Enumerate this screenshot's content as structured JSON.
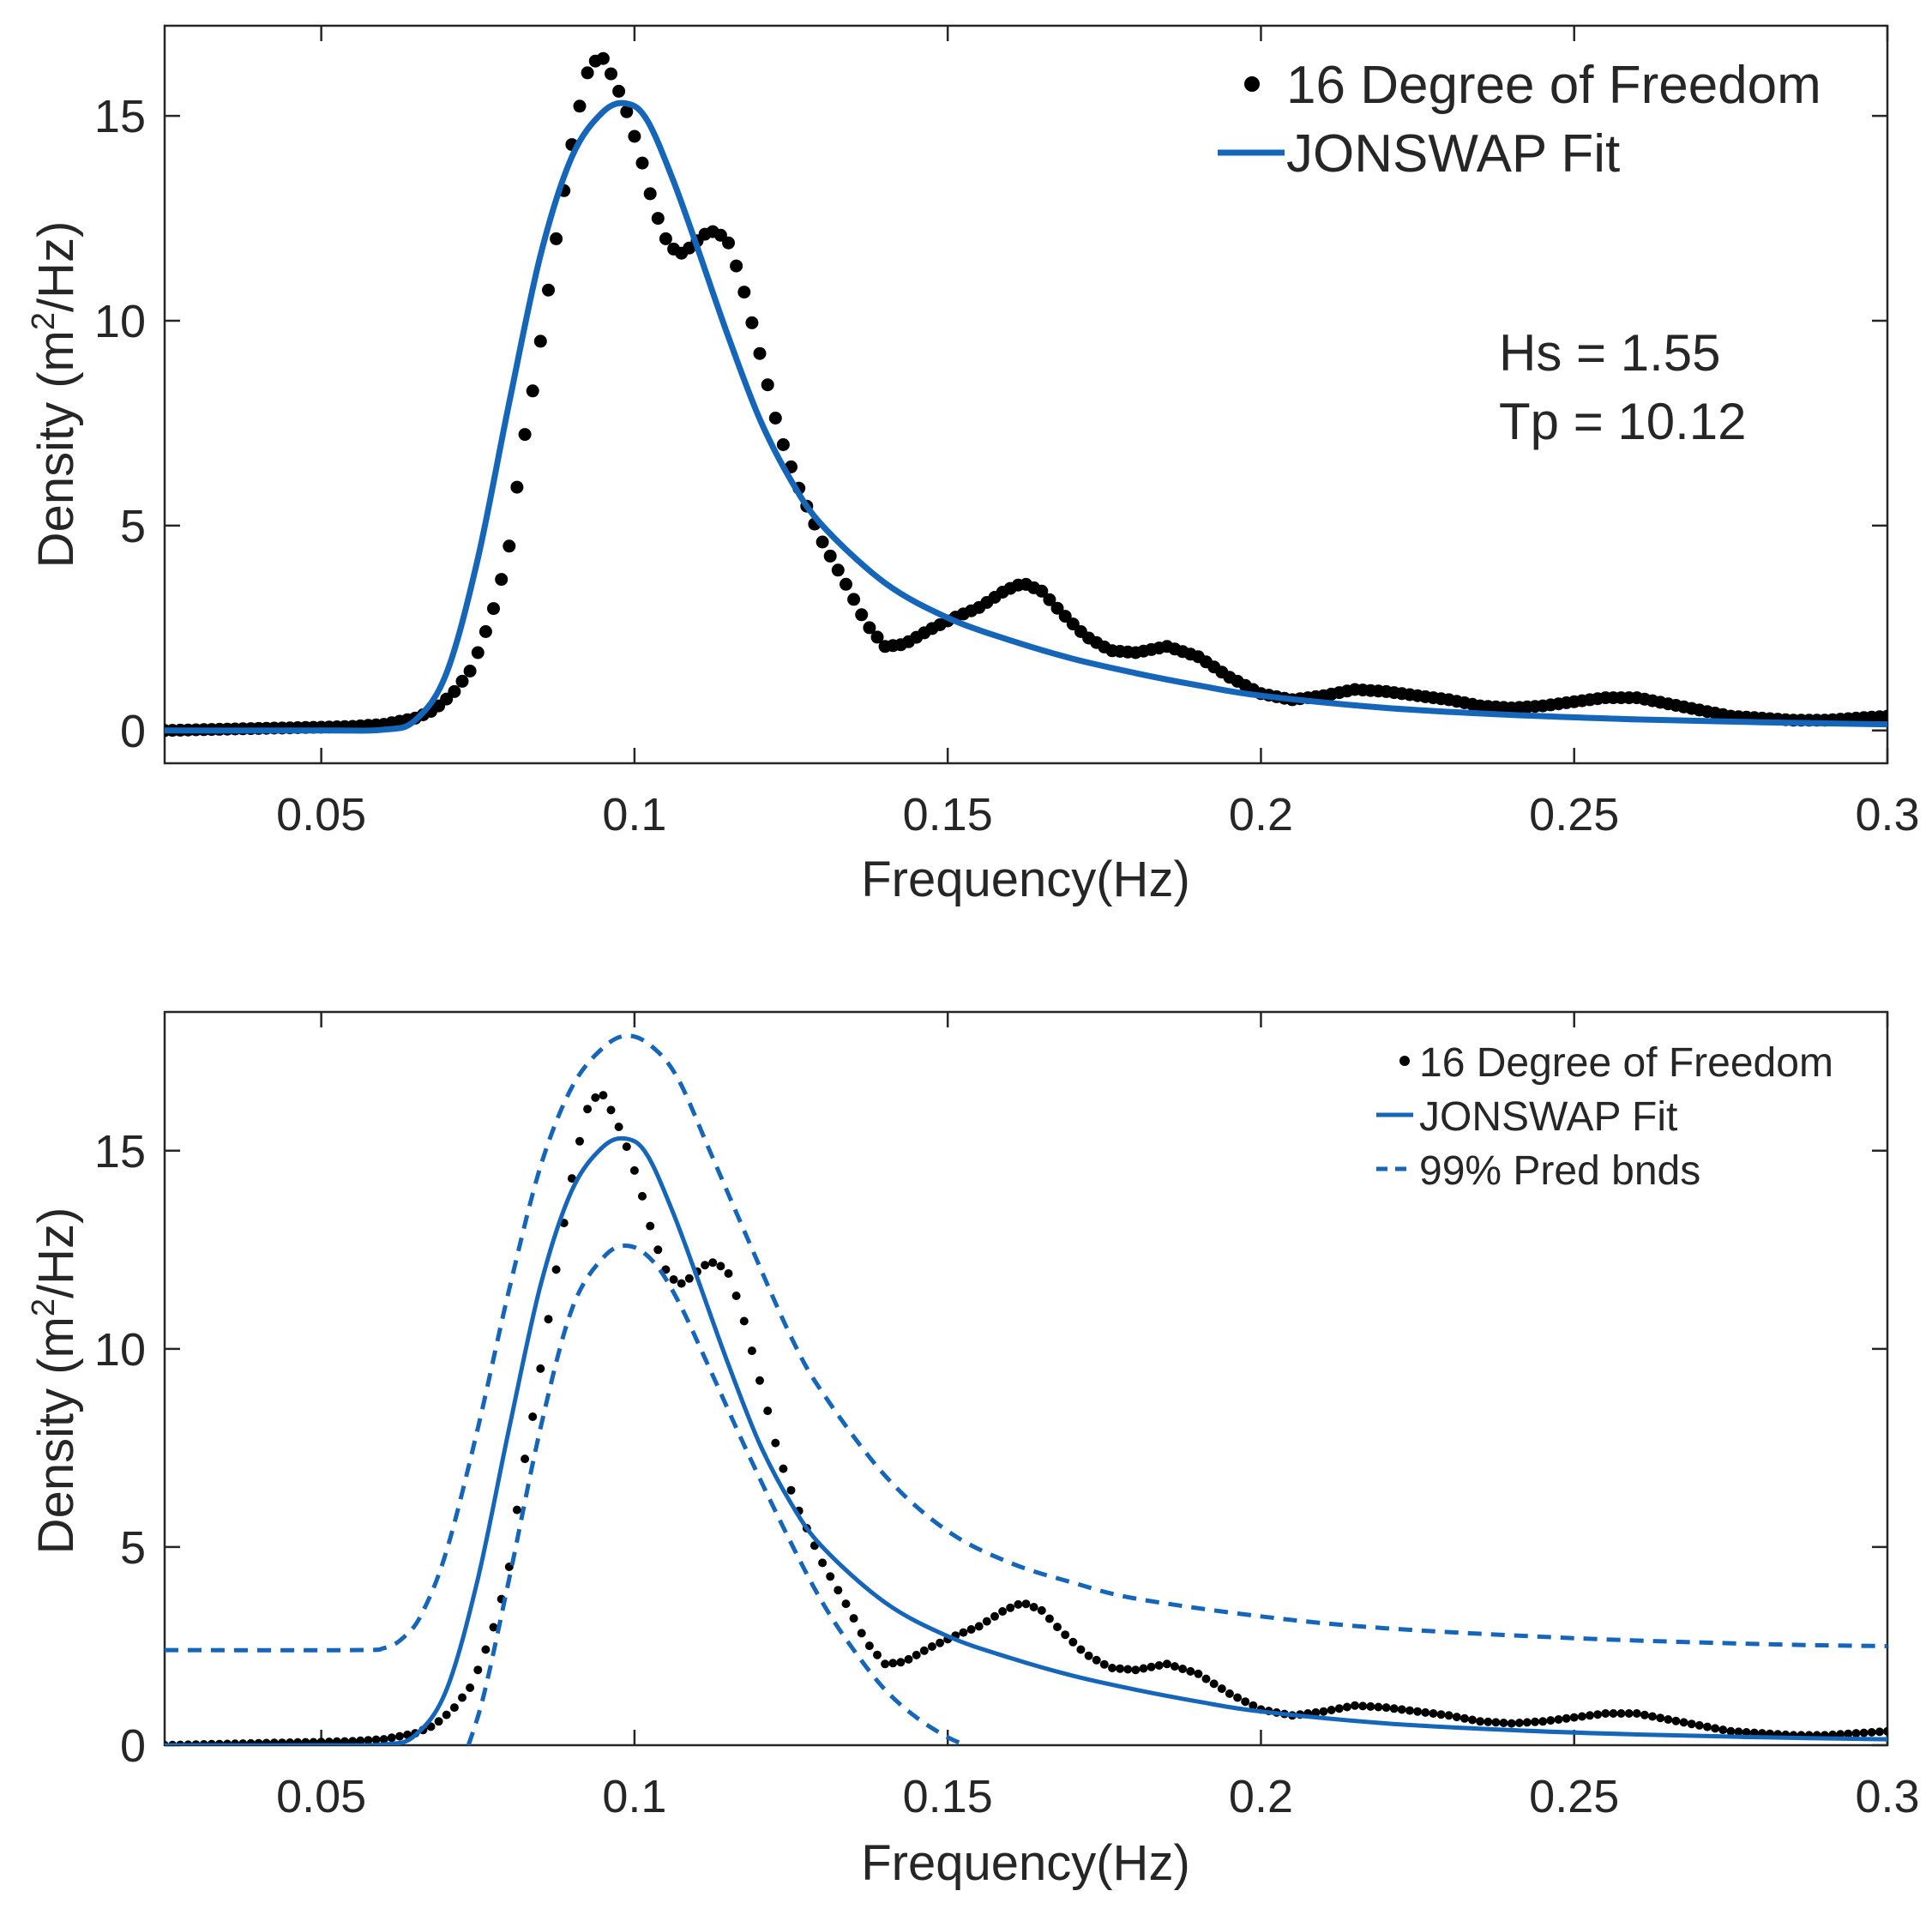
{
  "chart_data": [
    {
      "type": "scatter",
      "title": "",
      "xlabel": "Frequency(Hz)",
      "ylabel_main": "Density (m",
      "ylabel_sup": "2",
      "ylabel_tail": "/Hz)",
      "xlim": [
        0.025,
        0.3
      ],
      "ylim": [
        -0.8,
        17.2
      ],
      "xticks": [
        0.05,
        0.1,
        0.15,
        0.2,
        0.25,
        0.3
      ],
      "xtick_labels": [
        "0.05",
        "0.1",
        "0.15",
        "0.2",
        "0.25",
        "0.3"
      ],
      "yticks": [
        0,
        5,
        10,
        15
      ],
      "ytick_labels": [
        "0",
        "5",
        "10",
        "15"
      ],
      "legend_position": "top-right",
      "legend": [
        "16 Degree of Freedom",
        "JONSWAP Fit"
      ],
      "annotations": [
        "Hs = 1.55",
        "Tp = 10.12"
      ],
      "series": [
        {
          "name": "16 Degree of Freedom",
          "style": "dots",
          "color": "#000000",
          "x": [
            0.025,
            0.04,
            0.05,
            0.055,
            0.06,
            0.065,
            0.068,
            0.071,
            0.074,
            0.076,
            0.078,
            0.08,
            0.082,
            0.084,
            0.086,
            0.088,
            0.09,
            0.092,
            0.093,
            0.095,
            0.097,
            0.099,
            0.101,
            0.103,
            0.105,
            0.107,
            0.109,
            0.111,
            0.113,
            0.115,
            0.117,
            0.119,
            0.121,
            0.123,
            0.126,
            0.13,
            0.134,
            0.137,
            0.14,
            0.143,
            0.147,
            0.151,
            0.155,
            0.159,
            0.162,
            0.165,
            0.168,
            0.172,
            0.176,
            0.18,
            0.185,
            0.19,
            0.195,
            0.2,
            0.205,
            0.21,
            0.215,
            0.22,
            0.225,
            0.23,
            0.235,
            0.24,
            0.245,
            0.25,
            0.255,
            0.26,
            0.265,
            0.27,
            0.275,
            0.28,
            0.285,
            0.29,
            0.295,
            0.3
          ],
          "y": [
            0.0,
            0.05,
            0.08,
            0.1,
            0.15,
            0.3,
            0.5,
            0.9,
            1.5,
            2.3,
            3.2,
            4.5,
            6.8,
            8.5,
            10.5,
            12.5,
            14.3,
            15.8,
            16.3,
            16.4,
            15.8,
            15.0,
            14.0,
            12.8,
            12.0,
            11.6,
            11.8,
            12.1,
            12.2,
            11.9,
            11.0,
            9.8,
            8.6,
            7.3,
            6.0,
            4.6,
            3.5,
            2.6,
            2.05,
            2.1,
            2.45,
            2.75,
            3.0,
            3.4,
            3.6,
            3.4,
            2.9,
            2.3,
            1.95,
            1.9,
            2.05,
            1.8,
            1.3,
            0.9,
            0.75,
            0.85,
            1.0,
            0.95,
            0.85,
            0.75,
            0.6,
            0.55,
            0.6,
            0.7,
            0.8,
            0.8,
            0.65,
            0.5,
            0.35,
            0.3,
            0.25,
            0.25,
            0.3,
            0.35
          ]
        },
        {
          "name": "JONSWAP Fit",
          "style": "solid",
          "color": "#1565b8",
          "x": [
            0.025,
            0.05,
            0.06,
            0.065,
            0.07,
            0.075,
            0.08,
            0.085,
            0.09,
            0.095,
            0.0988,
            0.102,
            0.106,
            0.11,
            0.115,
            0.12,
            0.125,
            0.13,
            0.14,
            0.15,
            0.16,
            0.17,
            0.18,
            0.19,
            0.2,
            0.22,
            0.24,
            0.26,
            0.28,
            0.3
          ],
          "y": [
            0.0,
            0.0,
            0.02,
            0.25,
            1.4,
            4.2,
            8.0,
            11.6,
            14.0,
            15.1,
            15.3,
            14.9,
            13.5,
            11.8,
            9.6,
            7.6,
            6.1,
            5.0,
            3.6,
            2.75,
            2.2,
            1.75,
            1.4,
            1.1,
            0.85,
            0.55,
            0.38,
            0.27,
            0.2,
            0.15
          ]
        }
      ]
    },
    {
      "type": "scatter",
      "title": "",
      "xlabel": "Frequency(Hz)",
      "ylabel_main": "Density (m",
      "ylabel_sup": "2",
      "ylabel_tail": "/Hz)",
      "xlim": [
        0.025,
        0.3
      ],
      "ylim": [
        0,
        18.5
      ],
      "xticks": [
        0.05,
        0.1,
        0.15,
        0.2,
        0.25,
        0.3
      ],
      "xtick_labels": [
        "0.05",
        "0.1",
        "0.15",
        "0.2",
        "0.25",
        "0.3"
      ],
      "yticks": [
        0,
        5,
        10,
        15
      ],
      "ytick_labels": [
        "0",
        "5",
        "10",
        "15"
      ],
      "legend_position": "top-right",
      "legend": [
        "16 Degree of Freedom",
        "JONSWAP Fit",
        "99% Pred bnds"
      ],
      "series": [
        {
          "name": "16 Degree of Freedom",
          "style": "dots",
          "color": "#000000",
          "x": [
            0.025,
            0.04,
            0.05,
            0.055,
            0.06,
            0.065,
            0.068,
            0.071,
            0.074,
            0.076,
            0.078,
            0.08,
            0.082,
            0.084,
            0.086,
            0.088,
            0.09,
            0.092,
            0.093,
            0.095,
            0.097,
            0.099,
            0.101,
            0.103,
            0.105,
            0.107,
            0.109,
            0.111,
            0.113,
            0.115,
            0.117,
            0.119,
            0.121,
            0.123,
            0.126,
            0.13,
            0.134,
            0.137,
            0.14,
            0.143,
            0.147,
            0.151,
            0.155,
            0.159,
            0.162,
            0.165,
            0.168,
            0.172,
            0.176,
            0.18,
            0.185,
            0.19,
            0.195,
            0.2,
            0.205,
            0.21,
            0.215,
            0.22,
            0.225,
            0.23,
            0.235,
            0.24,
            0.245,
            0.25,
            0.255,
            0.26,
            0.265,
            0.27,
            0.275,
            0.28,
            0.285,
            0.29,
            0.295,
            0.3
          ],
          "y": [
            0.0,
            0.05,
            0.08,
            0.1,
            0.15,
            0.3,
            0.5,
            0.9,
            1.5,
            2.3,
            3.2,
            4.5,
            6.8,
            8.5,
            10.5,
            12.5,
            14.3,
            15.8,
            16.3,
            16.4,
            15.8,
            15.0,
            14.0,
            12.8,
            12.0,
            11.6,
            11.8,
            12.1,
            12.2,
            11.9,
            11.0,
            9.8,
            8.6,
            7.3,
            6.0,
            4.6,
            3.5,
            2.6,
            2.05,
            2.1,
            2.45,
            2.75,
            3.0,
            3.4,
            3.6,
            3.4,
            2.9,
            2.3,
            1.95,
            1.9,
            2.05,
            1.8,
            1.3,
            0.9,
            0.75,
            0.85,
            1.0,
            0.95,
            0.85,
            0.75,
            0.6,
            0.55,
            0.6,
            0.7,
            0.8,
            0.8,
            0.65,
            0.5,
            0.35,
            0.3,
            0.25,
            0.25,
            0.3,
            0.35
          ]
        },
        {
          "name": "JONSWAP Fit",
          "style": "solid",
          "color": "#1565b8",
          "x": [
            0.025,
            0.05,
            0.06,
            0.065,
            0.07,
            0.075,
            0.08,
            0.085,
            0.09,
            0.095,
            0.0988,
            0.102,
            0.106,
            0.11,
            0.115,
            0.12,
            0.125,
            0.13,
            0.14,
            0.15,
            0.16,
            0.17,
            0.18,
            0.19,
            0.2,
            0.22,
            0.24,
            0.26,
            0.28,
            0.3
          ],
          "y": [
            0.0,
            0.0,
            0.02,
            0.25,
            1.4,
            4.2,
            8.0,
            11.6,
            14.0,
            15.1,
            15.3,
            14.9,
            13.5,
            11.8,
            9.6,
            7.6,
            6.1,
            5.0,
            3.6,
            2.75,
            2.2,
            1.75,
            1.4,
            1.1,
            0.85,
            0.55,
            0.38,
            0.27,
            0.2,
            0.15
          ]
        },
        {
          "name": "99% Pred bnds (upper)",
          "style": "dashed",
          "color": "#1565b8",
          "x": [
            0.025,
            0.055,
            0.06,
            0.063,
            0.066,
            0.07,
            0.075,
            0.08,
            0.085,
            0.09,
            0.095,
            0.099,
            0.103,
            0.107,
            0.112,
            0.118,
            0.125,
            0.13,
            0.14,
            0.15,
            0.16,
            0.17,
            0.18,
            0.2,
            0.22,
            0.25,
            0.28,
            0.3
          ],
          "y": [
            2.4,
            2.4,
            2.45,
            2.7,
            3.3,
            4.9,
            8.0,
            11.5,
            14.6,
            16.6,
            17.6,
            17.9,
            17.6,
            16.8,
            15.0,
            12.8,
            10.3,
            8.9,
            6.8,
            5.4,
            4.6,
            4.1,
            3.7,
            3.25,
            2.95,
            2.7,
            2.55,
            2.5
          ]
        },
        {
          "name": "99% Pred bnds (lower)",
          "style": "dashed",
          "color": "#1565b8",
          "x": [
            0.0735,
            0.076,
            0.08,
            0.085,
            0.09,
            0.095,
            0.099,
            0.103,
            0.107,
            0.112,
            0.118,
            0.125,
            0.13,
            0.135,
            0.14,
            0.145,
            0.15,
            0.153
          ],
          "y": [
            0.0,
            1.3,
            4.2,
            8.0,
            11.0,
            12.3,
            12.6,
            12.2,
            11.2,
            9.5,
            7.4,
            5.1,
            3.6,
            2.4,
            1.4,
            0.7,
            0.2,
            0.0
          ]
        }
      ]
    }
  ]
}
